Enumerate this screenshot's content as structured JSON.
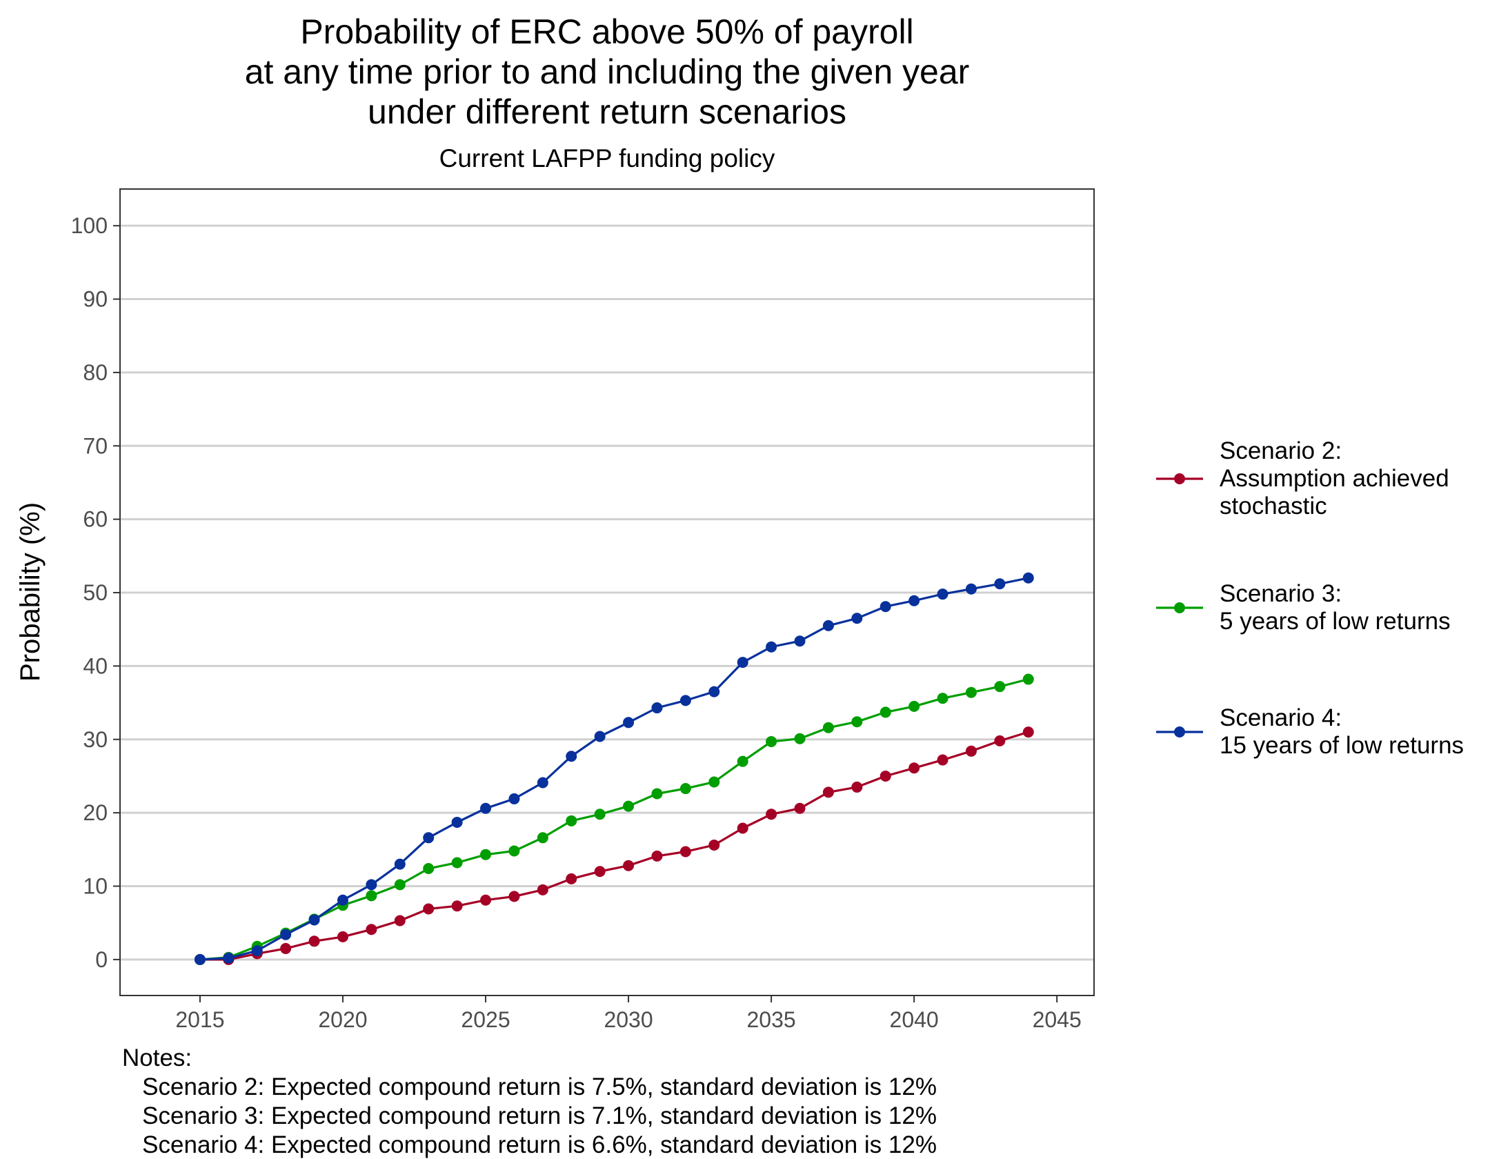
{
  "chart_data": {
    "type": "line",
    "title": [
      "Probability of ERC above 50% of payroll",
      "at any time prior to and including the given year",
      "under different return scenarios"
    ],
    "subtitle": "Current LAFPP funding policy",
    "ylabel": "Probability (%)",
    "xlabel": "",
    "xlim": [
      2012.2,
      2046.3
    ],
    "ylim": [
      -4.9,
      105
    ],
    "x_ticks": [
      2015,
      2020,
      2025,
      2030,
      2035,
      2040,
      2045
    ],
    "y_ticks": [
      0,
      10,
      20,
      30,
      40,
      50,
      60,
      70,
      80,
      90,
      100
    ],
    "grid": "horizontal-major",
    "legend_position": "right",
    "x": [
      2015,
      2016,
      2017,
      2018,
      2019,
      2020,
      2021,
      2022,
      2023,
      2024,
      2025,
      2026,
      2027,
      2028,
      2029,
      2030,
      2031,
      2032,
      2033,
      2034,
      2035,
      2036,
      2037,
      2038,
      2039,
      2040,
      2041,
      2042,
      2043,
      2044
    ],
    "series": [
      {
        "legend": [
          "Scenario 2:",
          "Assumption achieved",
          "stochastic"
        ],
        "color": "#a50026",
        "values": [
          0,
          0,
          0.8,
          1.5,
          2.5,
          3.1,
          4.1,
          5.3,
          6.9,
          7.3,
          8.1,
          8.6,
          9.5,
          11.0,
          12.0,
          12.8,
          14.1,
          14.7,
          15.6,
          17.9,
          19.8,
          20.6,
          22.8,
          23.5,
          25.0,
          26.1,
          27.2,
          28.4,
          29.8,
          31.0
        ]
      },
      {
        "legend": [
          "Scenario 3:",
          "5 years of low returns"
        ],
        "color": "#009e00",
        "values": [
          0,
          0.3,
          1.8,
          3.6,
          5.5,
          7.4,
          8.7,
          10.2,
          12.4,
          13.2,
          14.3,
          14.8,
          16.6,
          18.9,
          19.8,
          20.9,
          22.6,
          23.3,
          24.2,
          27.0,
          29.7,
          30.1,
          31.6,
          32.4,
          33.7,
          34.5,
          35.6,
          36.4,
          37.2,
          38.2
        ]
      },
      {
        "legend": [
          "Scenario 4:",
          "15 years of low returns"
        ],
        "color": "#08319c",
        "values": [
          0,
          0.2,
          1.2,
          3.4,
          5.4,
          8.1,
          10.2,
          13.0,
          16.6,
          18.7,
          20.6,
          21.9,
          24.1,
          27.7,
          30.4,
          32.3,
          34.3,
          35.3,
          36.5,
          40.5,
          42.6,
          43.4,
          45.5,
          46.5,
          48.1,
          48.9,
          49.8,
          50.5,
          51.2,
          52.0
        ]
      }
    ],
    "notes": [
      "Notes:",
      "   Scenario 2: Expected compound return is 7.5%, standard deviation is 12%",
      "   Scenario 3: Expected compound return is 7.1%, standard deviation is 12%",
      "   Scenario 4: Expected compound return is 6.6%, standard deviation is 12%"
    ]
  }
}
